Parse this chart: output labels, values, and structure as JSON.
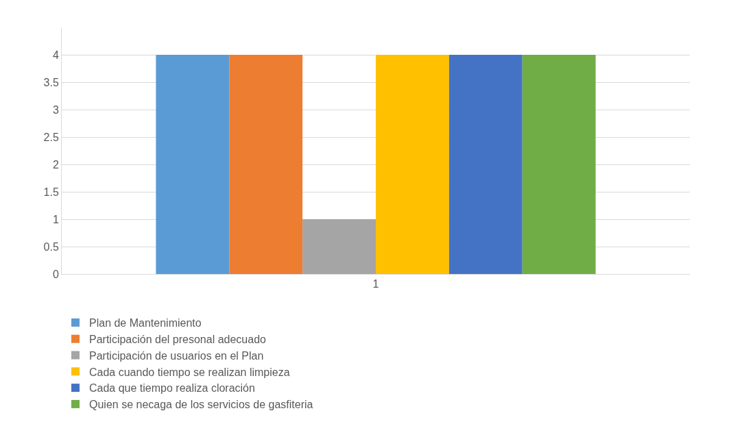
{
  "chart_data": {
    "type": "bar",
    "categories": [
      "1"
    ],
    "series": [
      {
        "name": "Plan de Mantenimiento",
        "color": "#5b9bd5",
        "values": [
          4
        ]
      },
      {
        "name": "Participación del presonal adecuado",
        "color": "#ed7d31",
        "values": [
          4
        ]
      },
      {
        "name": "Participación de usuarios en el Plan",
        "color": "#a5a5a5",
        "values": [
          1
        ]
      },
      {
        "name": "Cada cuando tiempo se realizan limpieza",
        "color": "#ffc000",
        "values": [
          4
        ]
      },
      {
        "name": "Cada que tiempo realiza cloración",
        "color": "#4472c4",
        "values": [
          4
        ]
      },
      {
        "name": "Quien se necaga de los servicios de gasfiteria",
        "color": "#70ad47",
        "values": [
          4
        ]
      }
    ],
    "ylim": [
      0,
      4.5
    ],
    "yticks": [
      0,
      0.5,
      1,
      1.5,
      2,
      2.5,
      3,
      3.5,
      4
    ],
    "grid": "y",
    "legend": "bottom"
  }
}
